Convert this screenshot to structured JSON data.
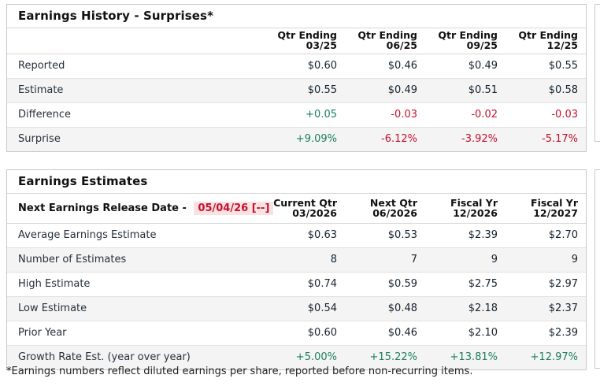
{
  "colors": {
    "positive": "#1b7e60",
    "negative": "#c8102e",
    "highlight_bg": "#fbe2e2"
  },
  "history": {
    "title": "Earnings History - Surprises*",
    "columns": [
      {
        "line1": "Qtr Ending",
        "line2": "03/25"
      },
      {
        "line1": "Qtr Ending",
        "line2": "06/25"
      },
      {
        "line1": "Qtr Ending",
        "line2": "09/25"
      },
      {
        "line1": "Qtr Ending",
        "line2": "12/25"
      }
    ],
    "rows": [
      {
        "label": "Reported",
        "values": [
          "$0.60",
          "$0.46",
          "$0.49",
          "$0.55"
        ]
      },
      {
        "label": "Estimate",
        "values": [
          "$0.55",
          "$0.49",
          "$0.51",
          "$0.58"
        ]
      },
      {
        "label": "Difference",
        "values": [
          "+0.05",
          "-0.03",
          "-0.02",
          "-0.03"
        ],
        "tones": [
          "pos",
          "neg",
          "neg",
          "neg"
        ]
      },
      {
        "label": "Surprise",
        "values": [
          "+9.09%",
          "-6.12%",
          "-3.92%",
          "-5.17%"
        ],
        "tones": [
          "pos",
          "neg",
          "neg",
          "neg"
        ]
      }
    ]
  },
  "estimates": {
    "title": "Earnings Estimates",
    "release_label": "Next Earnings Release Date -",
    "release_date": "05/04/26 [--]",
    "columns": [
      {
        "line1": "Current Qtr",
        "line2": "03/2026"
      },
      {
        "line1": "Next Qtr",
        "line2": "06/2026"
      },
      {
        "line1": "Fiscal Yr",
        "line2": "12/2026"
      },
      {
        "line1": "Fiscal Yr",
        "line2": "12/2027"
      }
    ],
    "rows": [
      {
        "label": "Average Earnings Estimate",
        "values": [
          "$0.63",
          "$0.53",
          "$2.39",
          "$2.70"
        ]
      },
      {
        "label": "Number of Estimates",
        "values": [
          "8",
          "7",
          "9",
          "9"
        ]
      },
      {
        "label": "High Estimate",
        "values": [
          "$0.74",
          "$0.59",
          "$2.75",
          "$2.97"
        ]
      },
      {
        "label": "Low Estimate",
        "values": [
          "$0.54",
          "$0.48",
          "$2.18",
          "$2.37"
        ]
      },
      {
        "label": "Prior Year",
        "values": [
          "$0.60",
          "$0.46",
          "$2.10",
          "$2.39"
        ]
      },
      {
        "label": "Growth Rate Est. (year over year)",
        "values": [
          "+5.00%",
          "+15.22%",
          "+13.81%",
          "+12.97%"
        ],
        "tones": [
          "pos",
          "pos",
          "pos",
          "pos"
        ]
      }
    ]
  },
  "page": {
    "footnote": "*Earnings numbers reflect diluted earnings per share, reported before non-recurring items."
  }
}
